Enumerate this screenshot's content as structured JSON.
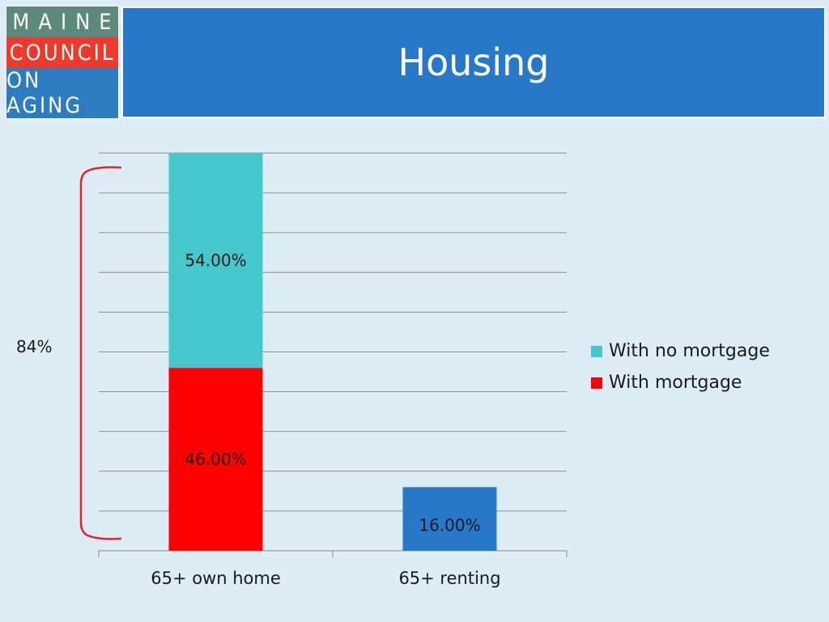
{
  "logo": {
    "lines": [
      "MAINE",
      "COUNCIL",
      "ON AGING"
    ],
    "colors": [
      "#5b8a7c",
      "#ee3a2c",
      "#2b7cc0"
    ]
  },
  "header": {
    "title": "Housing"
  },
  "bracket": {
    "label": "84%",
    "color": "#e0242a"
  },
  "chart_data": {
    "type": "bar",
    "stacked": true,
    "categories": [
      "65+ own home",
      "65+ renting"
    ],
    "ylim": [
      0,
      100
    ],
    "grid": true,
    "legend_position": "right",
    "series": [
      {
        "name": "With mortgage",
        "color": "#ff0000",
        "values": [
          46,
          null
        ],
        "labels": [
          "46.00%",
          ""
        ]
      },
      {
        "name": "With no mortgage",
        "color": "#45c8cc",
        "values": [
          54,
          null
        ],
        "labels": [
          "54.00%",
          ""
        ]
      },
      {
        "name": "",
        "color": "#2878c9",
        "values": [
          null,
          16
        ],
        "labels": [
          "",
          "16.00%"
        ]
      }
    ],
    "legend": [
      {
        "name": "With no mortgage",
        "color": "#45c8cc"
      },
      {
        "name": "With mortgage",
        "color": "#ff0000"
      }
    ]
  }
}
